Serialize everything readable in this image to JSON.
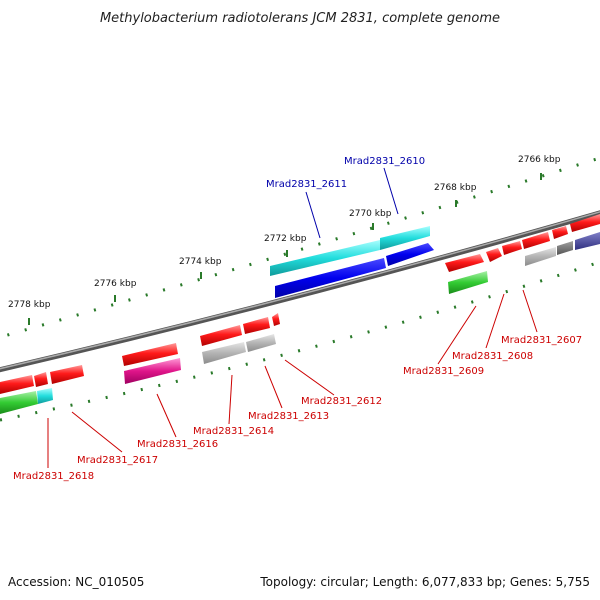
{
  "title": "Methylobacterium radiotolerans JCM 2831, complete genome",
  "footer": {
    "accession": "Accession: NC_010505",
    "topology": "Topology: circular; Length: 6,077,833 bp; Genes: 5,755"
  },
  "scale": {
    "labels": [
      "2766 kbp",
      "2768 kbp",
      "2770 kbp",
      "2772 kbp",
      "2774 kbp",
      "2776 kbp",
      "2778 kbp"
    ]
  },
  "genes": {
    "top": [
      "Mrad2831_2610",
      "Mrad2831_2611"
    ],
    "bottom": [
      "Mrad2831_2607",
      "Mrad2831_2608",
      "Mrad2831_2609",
      "Mrad2831_2612",
      "Mrad2831_2613",
      "Mrad2831_2614",
      "Mrad2831_2616",
      "Mrad2831_2617",
      "Mrad2831_2618"
    ]
  },
  "colors": {
    "forward_gene": "#e00000",
    "reverse_gene": "#e00000",
    "label_red": "#cc0000",
    "label_blue": "#0000aa",
    "backbone": "#777777",
    "tick": "#2a7a2a"
  }
}
